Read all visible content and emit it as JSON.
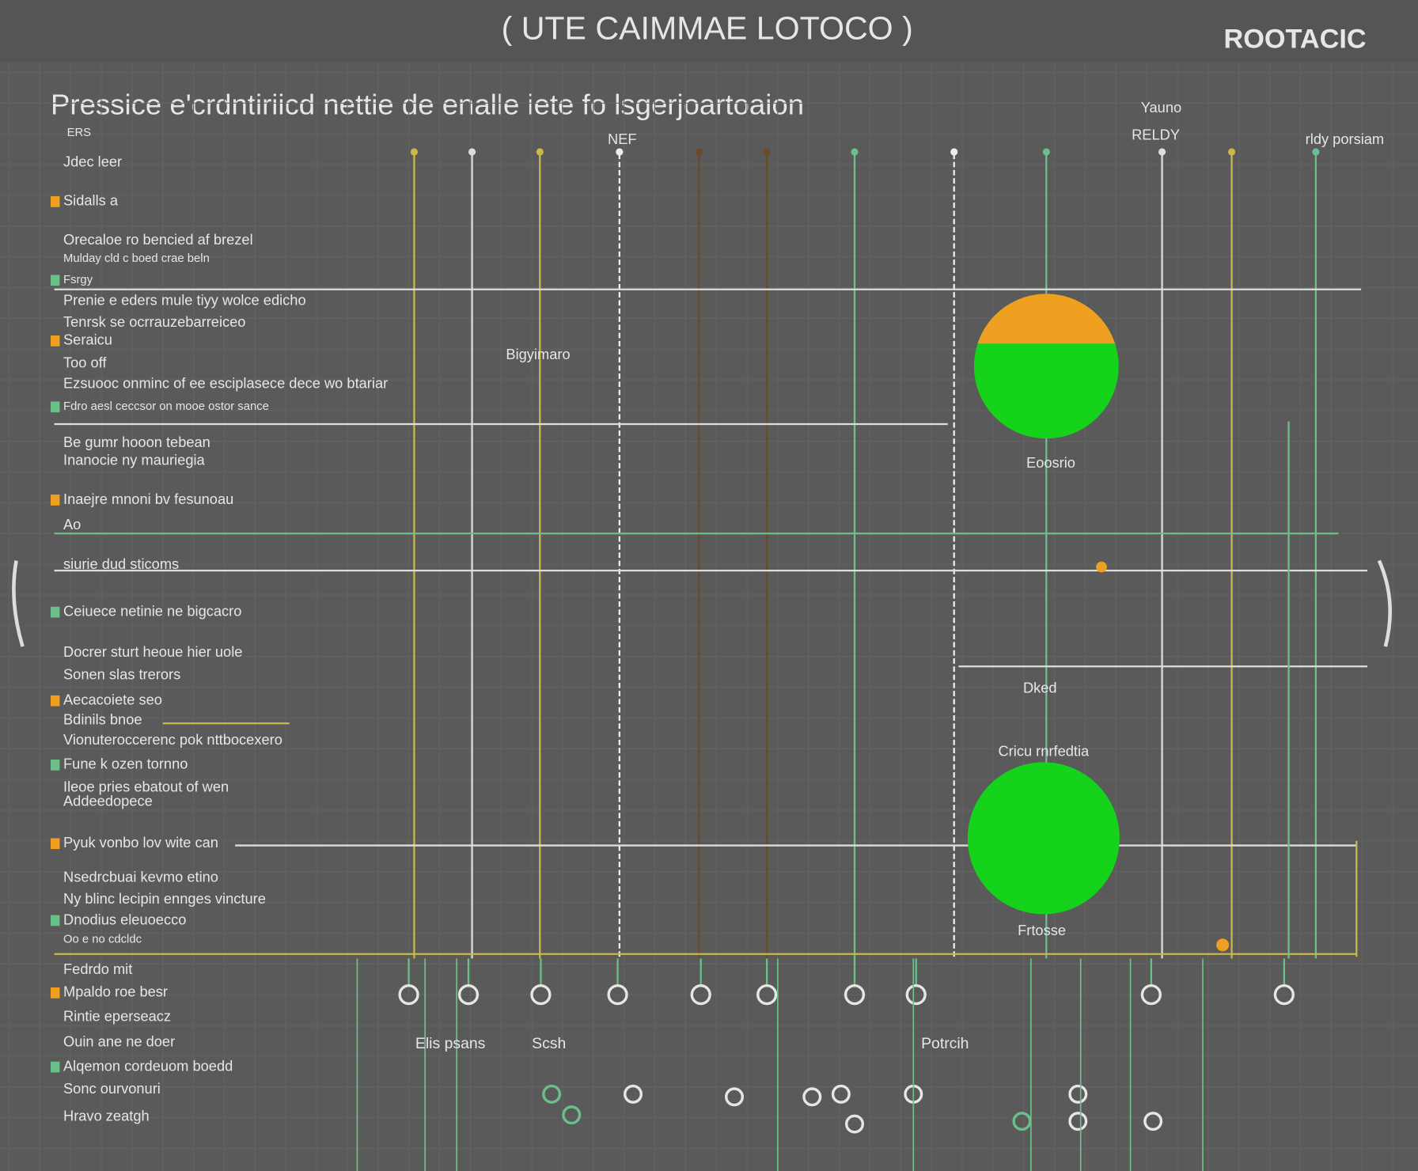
{
  "header": {
    "title": "( UTE CAIMMAE LOTOCO )",
    "right": "ROOTACIC"
  },
  "heading": "Pressice e'crdntiriicd nettie de enalle iete fo lsgerjoartoaion",
  "column_labels": [
    "NEF",
    "Yauno",
    "RELDY",
    "rldy porsiam"
  ],
  "left_items": [
    "ERS",
    "Jdec leer",
    "Sidalls a",
    "Orecaloe ro bencied af brezel",
    "Mulday cld c boed crae beln",
    "Fsrgy",
    "Prenie e eders mule tiyy wolce edicho",
    "Tenrsk se ocrrauzebarreiceo",
    "Seraicu",
    "Too off",
    "Ezsuooc onminc of ee esciplasece dece wo btariar",
    "Fdro aesl ceccsor on mooe ostor sance",
    "Be gumr hooon tebean",
    "Inanocie ny mauriegia",
    "Inaejre mnoni bv fesunoau",
    "Ao",
    "siurie dud sticoms",
    "Ceiuece netinie ne bigcacro",
    "Docrer sturt heoue hier uole",
    "Sonen slas trerors",
    "Aecacoiete seo",
    "Bdinils bnoe",
    "Vionuteroccerenc pok nttbocexero",
    "Fune k ozen tornno",
    "Ileoe pries ebatout of wen",
    "Addeedopece",
    "Pyuk vonbo lov wite can",
    "Nsedrcbuai kevmo etino",
    "Ny blinc lecipin ennges vincture",
    "Dnodius eleuoecco",
    "Oo e no cdcldc",
    "Fedrdo mit",
    "Mpaldo roe besr",
    "Rintie eperseacz",
    "Ouin ane ne doer",
    "Alqemon cordeuom boedd",
    "Sonc ourvonuri",
    "Hravo zeatgh"
  ],
  "center_labels": [
    "Bigyimaro",
    "Eoosrio",
    "Dked",
    "Cricu rnrfedtia",
    "Frtosse"
  ],
  "bottom_labels": [
    "Elis psans",
    "Scsh",
    "Potrcih"
  ]
}
